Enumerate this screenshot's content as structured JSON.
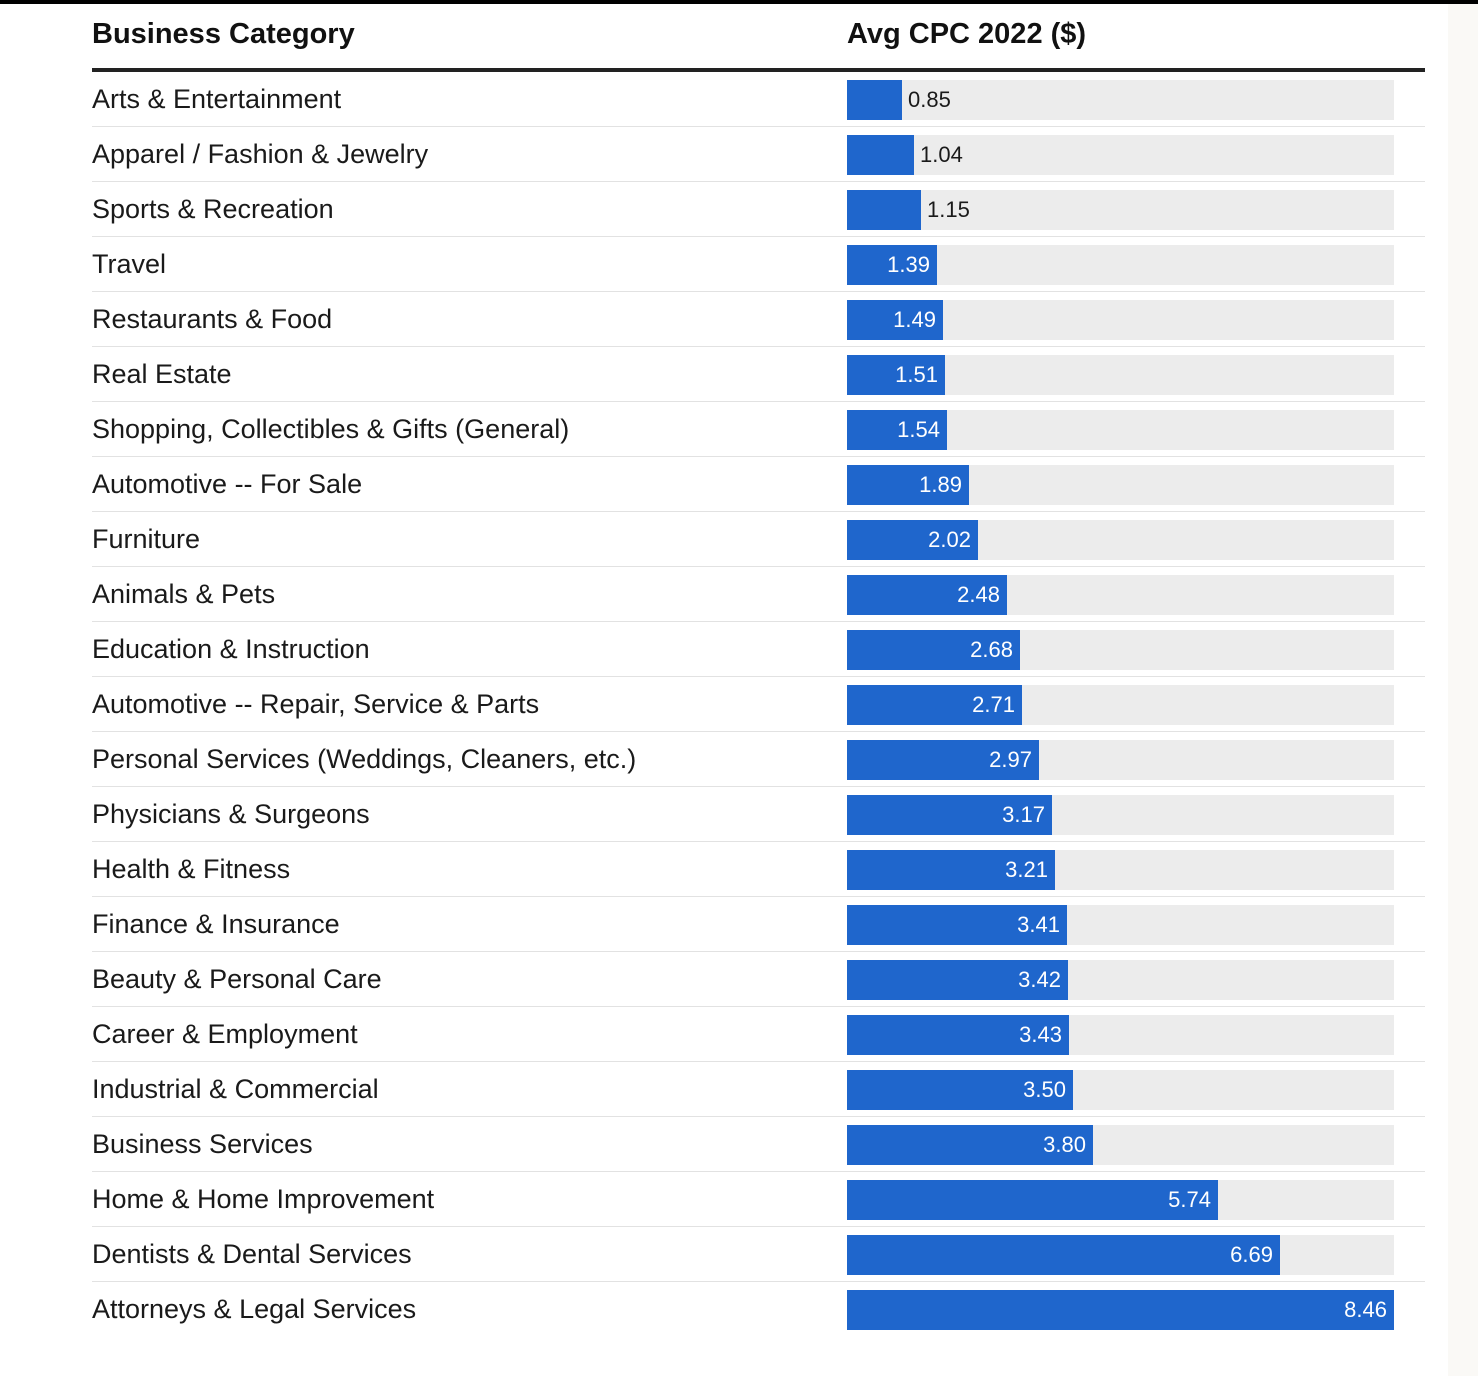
{
  "colors": {
    "bar": "#1f66cc",
    "track": "#ececec",
    "header_rule": "#222222",
    "row_divider": "#e2e2e2"
  },
  "header": {
    "category": "Business Category",
    "value": "Avg CPC 2022 ($)"
  },
  "chart_data": {
    "type": "table",
    "columns": [
      "Business Category",
      "Avg CPC 2022 ($)"
    ],
    "max": 8.46,
    "rows": [
      {
        "category": "Arts & Entertainment",
        "value": 0.85,
        "label": "0.85"
      },
      {
        "category": "Apparel / Fashion & Jewelry",
        "value": 1.04,
        "label": "1.04"
      },
      {
        "category": "Sports & Recreation",
        "value": 1.15,
        "label": "1.15"
      },
      {
        "category": "Travel",
        "value": 1.39,
        "label": "1.39"
      },
      {
        "category": "Restaurants & Food",
        "value": 1.49,
        "label": "1.49"
      },
      {
        "category": "Real Estate",
        "value": 1.51,
        "label": "1.51"
      },
      {
        "category": "Shopping, Collectibles & Gifts (General)",
        "value": 1.54,
        "label": "1.54"
      },
      {
        "category": "Automotive -- For Sale",
        "value": 1.89,
        "label": "1.89"
      },
      {
        "category": "Furniture",
        "value": 2.02,
        "label": "2.02"
      },
      {
        "category": "Animals & Pets",
        "value": 2.48,
        "label": "2.48"
      },
      {
        "category": "Education & Instruction",
        "value": 2.68,
        "label": "2.68"
      },
      {
        "category": "Automotive -- Repair, Service & Parts",
        "value": 2.71,
        "label": "2.71"
      },
      {
        "category": "Personal Services (Weddings, Cleaners, etc.)",
        "value": 2.97,
        "label": "2.97"
      },
      {
        "category": "Physicians & Surgeons",
        "value": 3.17,
        "label": "3.17"
      },
      {
        "category": "Health & Fitness",
        "value": 3.21,
        "label": "3.21"
      },
      {
        "category": "Finance & Insurance",
        "value": 3.41,
        "label": "3.41"
      },
      {
        "category": "Beauty & Personal Care",
        "value": 3.42,
        "label": "3.42"
      },
      {
        "category": "Career & Employment",
        "value": 3.43,
        "label": "3.43"
      },
      {
        "category": "Industrial & Commercial",
        "value": 3.5,
        "label": "3.50"
      },
      {
        "category": "Business Services",
        "value": 3.8,
        "label": "3.80"
      },
      {
        "category": "Home & Home Improvement",
        "value": 5.74,
        "label": "5.74"
      },
      {
        "category": "Dentists & Dental Services",
        "value": 6.69,
        "label": "6.69"
      },
      {
        "category": "Attorneys & Legal Services",
        "value": 8.46,
        "label": "8.46"
      }
    ]
  }
}
